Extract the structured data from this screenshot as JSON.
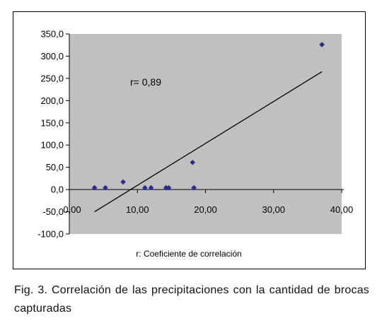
{
  "caption": "Fig. 3. Correlación de las precipitaciones con la cantidad de brocas capturadas",
  "chart_data": {
    "type": "scatter",
    "title": "",
    "xlabel": "r: Coeficiente de correlación",
    "ylabel": "",
    "annotation": "r= 0,89",
    "xlim": [
      0,
      40
    ],
    "ylim": [
      -100,
      350
    ],
    "x_ticks": [
      0,
      10,
      20,
      30,
      40
    ],
    "x_tick_labels": [
      "0,00",
      "10,00",
      "20,00",
      "30,00",
      "40,00"
    ],
    "y_ticks": [
      350,
      300,
      250,
      200,
      150,
      100,
      50,
      0,
      -50,
      -100
    ],
    "y_tick_labels": [
      "350,0",
      "300,0",
      "250,0",
      "200,0",
      "150,0",
      "100,0",
      "50,0",
      "0,0",
      "-50,0",
      "-100,0"
    ],
    "grid": false,
    "legend": "none",
    "colors": {
      "plot_background": "#c0c0c0",
      "marker": "#2b2b8c",
      "trendline": "#000000"
    },
    "points": [
      {
        "x": 3.7,
        "y": 4
      },
      {
        "x": 5.3,
        "y": 4
      },
      {
        "x": 7.9,
        "y": 17
      },
      {
        "x": 11.1,
        "y": 4
      },
      {
        "x": 12.0,
        "y": 4
      },
      {
        "x": 14.2,
        "y": 4
      },
      {
        "x": 14.6,
        "y": 4
      },
      {
        "x": 18.1,
        "y": 61
      },
      {
        "x": 18.3,
        "y": 4
      },
      {
        "x": 37.1,
        "y": 326
      }
    ],
    "trendline": {
      "x": [
        3.7,
        37.1
      ],
      "y": [
        -50,
        265
      ]
    }
  }
}
